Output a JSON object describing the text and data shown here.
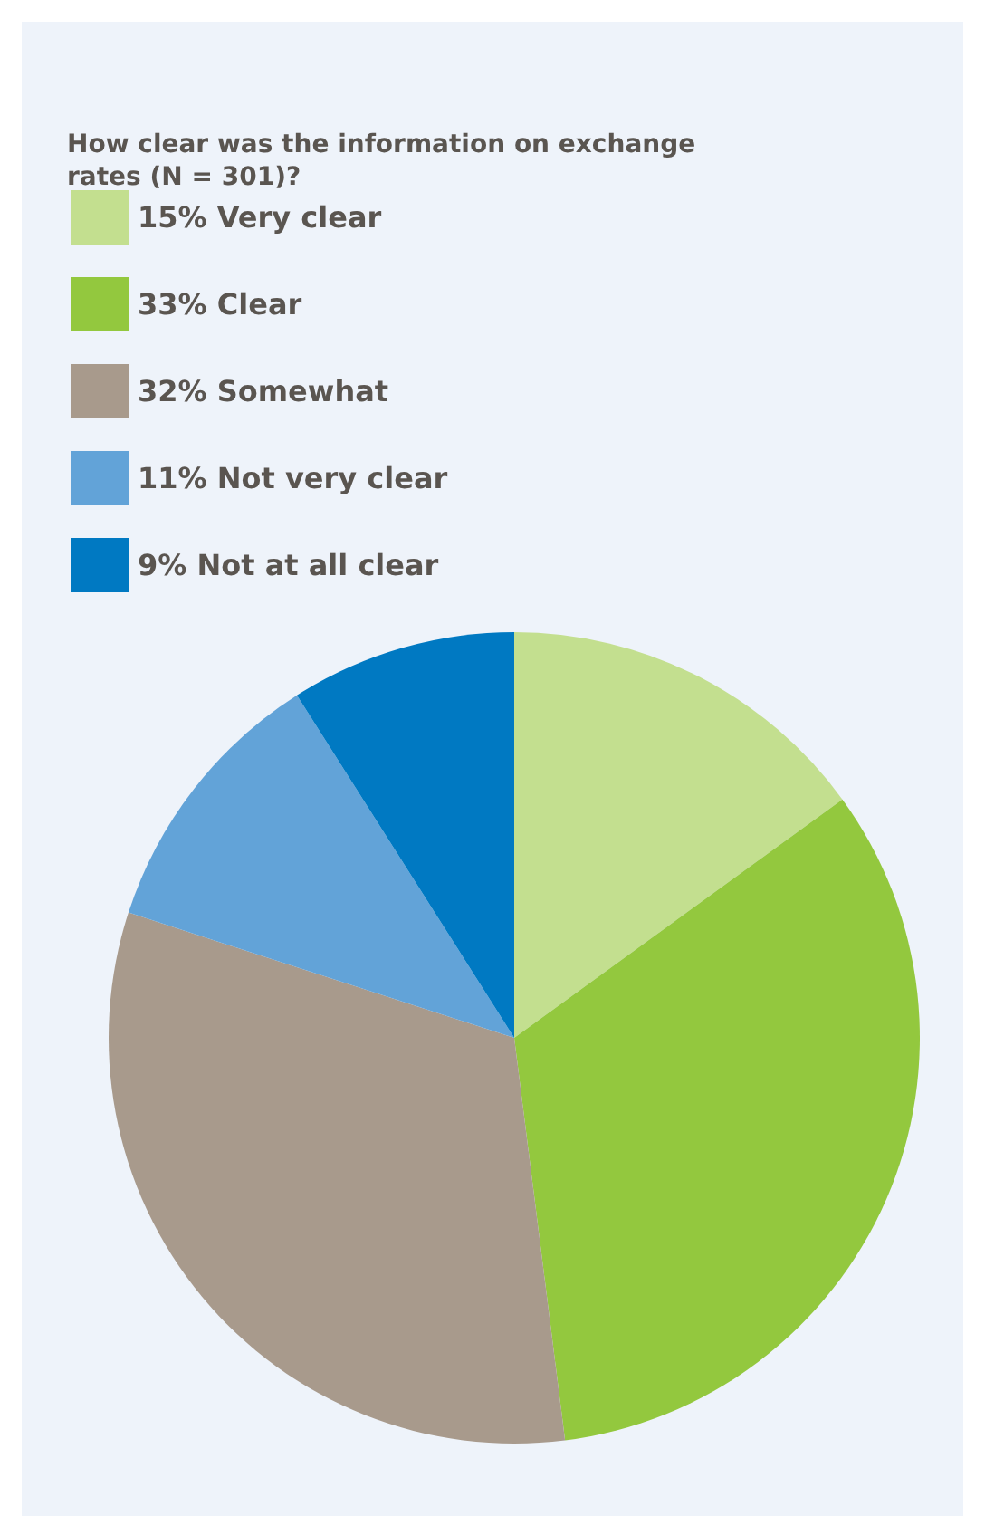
{
  "chart_data": {
    "type": "pie",
    "title": "How clear was the information on exchange rates (N = 301)?",
    "categories": [
      "15% Very clear",
      "33% Clear",
      "32% Somewhat",
      "11% Not very clear",
      "9% Not at all clear"
    ],
    "values": [
      15,
      33,
      32,
      11,
      9
    ],
    "colors": [
      "#c3df8f",
      "#93c83e",
      "#a89a8c",
      "#62a3d8",
      "#0079c2"
    ],
    "legend": "top left"
  }
}
